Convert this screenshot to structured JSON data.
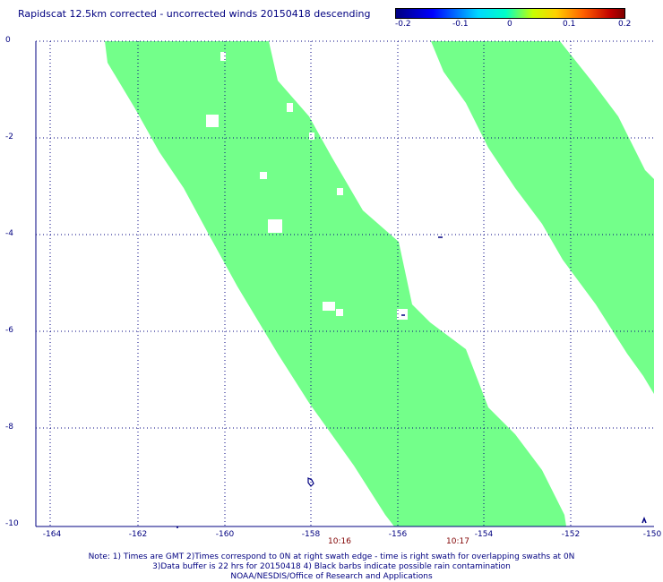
{
  "title": "Rapidscat 12.5km corrected - uncorrected winds 20150418 descending",
  "colorbar": {
    "ticks": [
      "-0.2",
      "-0.1",
      "0",
      "0.1",
      "0.2"
    ]
  },
  "lat_labels": [
    "0",
    "-2",
    "-4",
    "-6",
    "-8",
    "-10"
  ],
  "lon_labels": [
    "-164",
    "-162",
    "-160",
    "-158",
    "-156",
    "-154",
    "-152",
    "-150"
  ],
  "time_labels": [
    "10:16",
    "10:17"
  ],
  "notes": [
    "Note: 1) Times are GMT 2)Times correspond to 0N at right swath edge - time is right swath for overlapping swaths at 0N",
    "3)Data buffer is 22 hrs for 20150418 4) Black barbs indicate possible rain contamination",
    "NOAA/NESDIS/Office of Research and Applications"
  ],
  "colors": {
    "swath": "#73ff8a",
    "axis": "#000080",
    "time": "#800000"
  }
}
